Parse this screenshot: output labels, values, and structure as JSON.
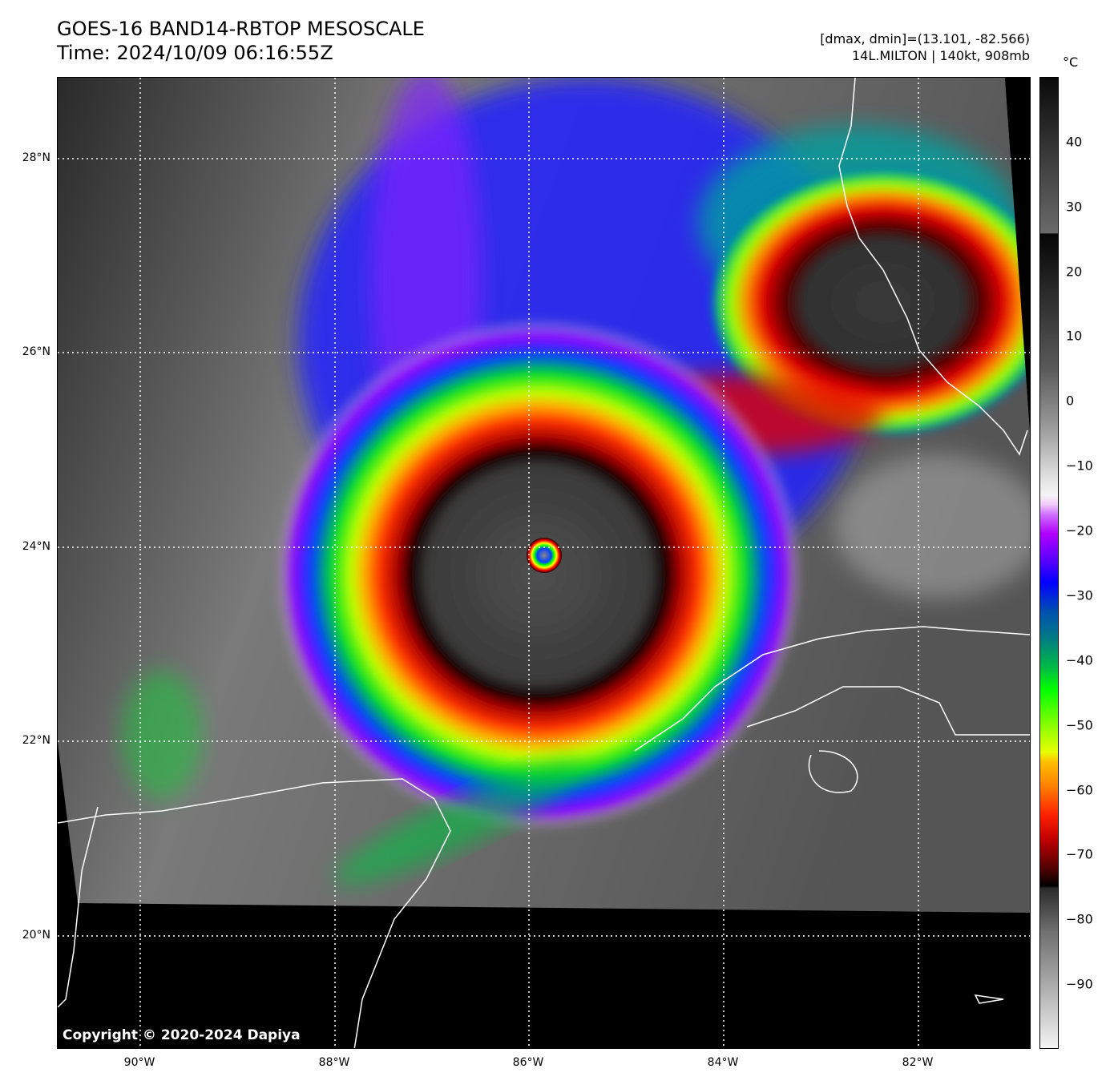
{
  "header": {
    "title": "GOES-16 BAND14-RBTOP MESOSCALE",
    "time": "Time: 2024/10/09 06:16:55Z",
    "dminmax": "[dmax, dmin]=(13.101, -82.566)",
    "storm": "14L.MILTON | 140kt, 908mb"
  },
  "axes": {
    "lat_labels": [
      "28°N",
      "26°N",
      "24°N",
      "22°N",
      "20°N"
    ],
    "lon_labels": [
      "90°W",
      "88°W",
      "86°W",
      "84°W",
      "82°W"
    ]
  },
  "colorbar": {
    "unit": "°C",
    "ticks": [
      "40",
      "30",
      "20",
      "10",
      "0",
      "−10",
      "−20",
      "−30",
      "−40",
      "−50",
      "−60",
      "−70",
      "−80",
      "−90"
    ],
    "range": [
      -100,
      50
    ]
  },
  "storm_center": {
    "lat": 23.95,
    "lon": -85.85
  },
  "copyright": "Copyright © 2020-2024 Dapiya"
}
